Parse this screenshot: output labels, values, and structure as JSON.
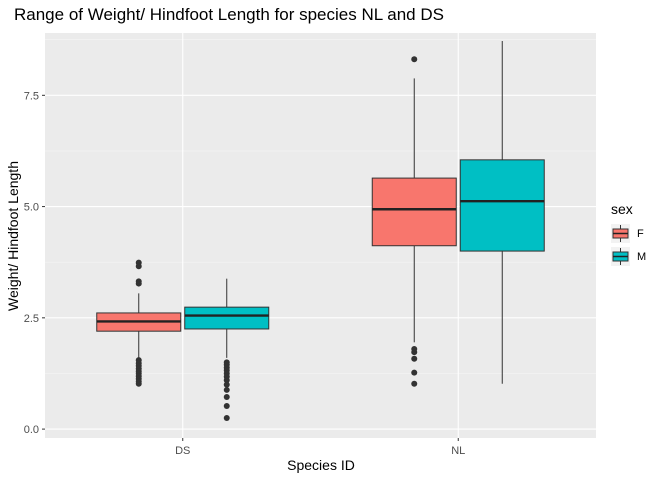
{
  "chart_data": {
    "type": "boxplot",
    "title": "Range of Weight/ Hindfoot Length for species NL and DS",
    "xlabel": "Species ID",
    "ylabel": "Weight/ Hindfoot Length",
    "categories": [
      "DS",
      "NL"
    ],
    "y_ticks": [
      "0.0",
      "2.5",
      "5.0",
      "7.5"
    ],
    "ylim": [
      -0.2,
      8.9
    ],
    "grid": true,
    "legend": {
      "title": "sex",
      "placement": "right"
    },
    "series": [
      {
        "name": "F",
        "color": "#F8766D",
        "boxes": [
          {
            "category": "DS",
            "min": 1.55,
            "q1": 2.2,
            "median": 2.42,
            "q3": 2.61,
            "max": 3.05,
            "outliers": [
              3.74,
              3.66,
              3.32,
              3.27,
              1.55,
              1.48,
              1.42,
              1.36,
              1.3,
              1.25,
              1.19,
              1.13,
              1.07,
              1.02
            ]
          },
          {
            "category": "NL",
            "min": 1.95,
            "q1": 4.12,
            "median": 4.94,
            "q3": 5.64,
            "max": 7.88,
            "outliers": [
              8.31,
              1.8,
              1.73,
              1.58,
              1.27,
              1.02
            ]
          }
        ]
      },
      {
        "name": "M",
        "color": "#00BFC4",
        "boxes": [
          {
            "category": "DS",
            "min": 1.6,
            "q1": 2.25,
            "median": 2.55,
            "q3": 2.74,
            "max": 3.38,
            "outliers": [
              1.5,
              1.45,
              1.38,
              1.32,
              1.25,
              1.18,
              1.1,
              1.0,
              0.88,
              0.72,
              0.52,
              0.25
            ]
          },
          {
            "category": "NL",
            "min": 1.02,
            "q1": 4.0,
            "median": 5.12,
            "q3": 6.05,
            "max": 8.72,
            "outliers": []
          }
        ]
      }
    ]
  }
}
